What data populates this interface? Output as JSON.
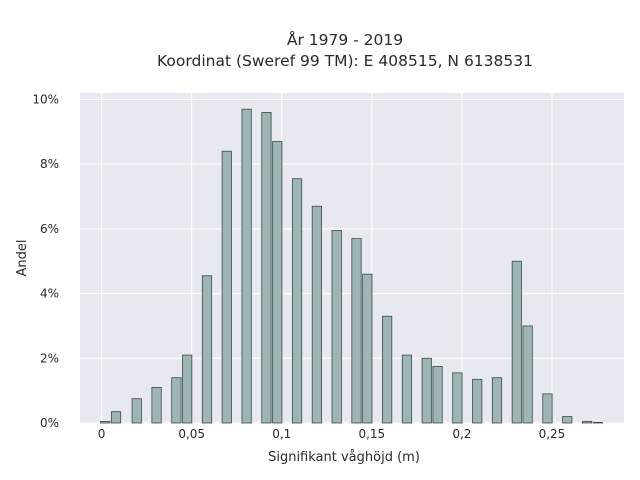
{
  "chart_data": {
    "type": "bar",
    "title_line1": "År 1979 - 2019",
    "title_line2": "Koordinat (Sweref 99 TM): E 408515, N 6138531",
    "xlabel": "Signifikant våghöjd (m)",
    "ylabel": "Andel",
    "xlim": [
      -0.012,
      0.29
    ],
    "ylim": [
      0,
      10.2
    ],
    "x_ticks": [
      {
        "value": 0,
        "label": "0"
      },
      {
        "value": 0.05,
        "label": "0,05"
      },
      {
        "value": 0.1,
        "label": "0,1"
      },
      {
        "value": 0.15,
        "label": "0,15"
      },
      {
        "value": 0.2,
        "label": "0,2"
      },
      {
        "value": 0.25,
        "label": "0,25"
      }
    ],
    "y_ticks": [
      {
        "value": 0,
        "label": "0%"
      },
      {
        "value": 2,
        "label": "2%"
      },
      {
        "value": 4,
        "label": "4%"
      },
      {
        "value": 6,
        "label": "6%"
      },
      {
        "value": 8,
        "label": "8%"
      },
      {
        "value": 10,
        "label": "10%"
      }
    ],
    "bar_width": 0.0052,
    "bars": [
      {
        "x": 0.002,
        "y": 0.05
      },
      {
        "x": 0.008,
        "y": 0.35
      },
      {
        "x": 0.0195,
        "y": 0.75
      },
      {
        "x": 0.0305,
        "y": 1.1
      },
      {
        "x": 0.0415,
        "y": 1.4
      },
      {
        "x": 0.0475,
        "y": 2.1
      },
      {
        "x": 0.0585,
        "y": 4.55
      },
      {
        "x": 0.0695,
        "y": 8.4
      },
      {
        "x": 0.0805,
        "y": 9.7
      },
      {
        "x": 0.0915,
        "y": 9.6
      },
      {
        "x": 0.0975,
        "y": 8.7
      },
      {
        "x": 0.1085,
        "y": 7.55
      },
      {
        "x": 0.1195,
        "y": 6.7
      },
      {
        "x": 0.1305,
        "y": 5.95
      },
      {
        "x": 0.1415,
        "y": 5.7
      },
      {
        "x": 0.1475,
        "y": 4.6
      },
      {
        "x": 0.1585,
        "y": 3.3
      },
      {
        "x": 0.1695,
        "y": 2.1
      },
      {
        "x": 0.1805,
        "y": 2.0
      },
      {
        "x": 0.1865,
        "y": 1.75
      },
      {
        "x": 0.1975,
        "y": 1.55
      },
      {
        "x": 0.2085,
        "y": 1.35
      },
      {
        "x": 0.2195,
        "y": 1.4
      },
      {
        "x": 0.2305,
        "y": 5.0
      },
      {
        "x": 0.2365,
        "y": 3.0
      },
      {
        "x": 0.2475,
        "y": 0.9
      },
      {
        "x": 0.2585,
        "y": 0.2
      },
      {
        "x": 0.2695,
        "y": 0.05
      },
      {
        "x": 0.2755,
        "y": 0.02
      }
    ],
    "grid": true,
    "colors": {
      "plot_background": "#e8e8f0",
      "grid": "#ffffff",
      "bar_fill": "#9db5b5",
      "bar_stroke": "#3d4a4a"
    }
  }
}
